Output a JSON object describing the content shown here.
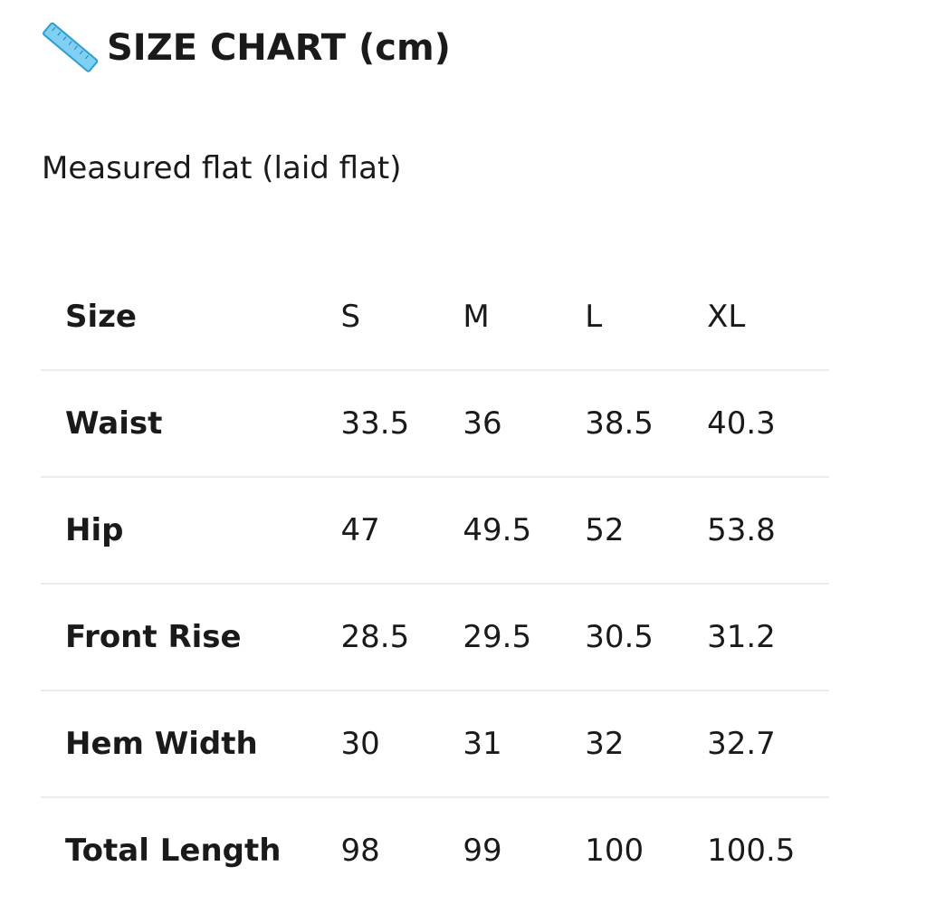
{
  "title": "SIZE CHART (cm)",
  "title_icon": "ruler-icon",
  "subtitle": "Measured flat (laid flat)",
  "table": {
    "header": [
      "Size",
      "S",
      "M",
      "L",
      "XL"
    ],
    "rows": [
      [
        "Waist",
        "33.5",
        "36",
        "38.5",
        "40.3"
      ],
      [
        "Hip",
        "47",
        "49.5",
        "52",
        "53.8"
      ],
      [
        "Front Rise",
        "28.5",
        "29.5",
        "30.5",
        "31.2"
      ],
      [
        "Hem Width",
        "30",
        "31",
        "32",
        "32.7"
      ],
      [
        "Total Length",
        "98",
        "99",
        "100",
        "100.5"
      ]
    ]
  }
}
